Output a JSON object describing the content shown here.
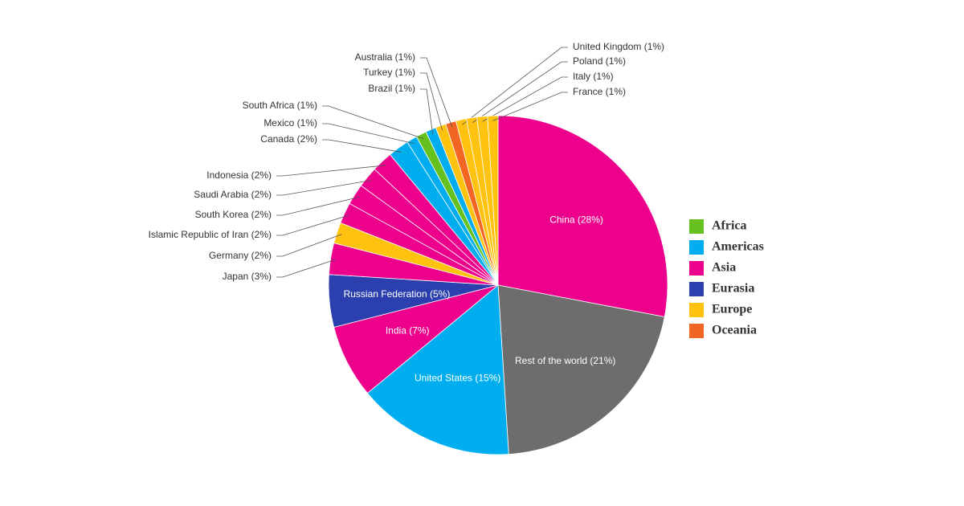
{
  "chart_data": {
    "type": "pie",
    "values": [
      28,
      21,
      15,
      7,
      5,
      3,
      2,
      2,
      2,
      2,
      2,
      2,
      1,
      1,
      1,
      1,
      1,
      1,
      1,
      1,
      1
    ],
    "value_labels": [
      "China (28%)",
      "Rest of the world (21%)",
      "United States (15%)",
      "India (7%)",
      "Russian Federation (5%)",
      "Japan (3%)",
      "Germany (2%)",
      "Islamic Republic of Iran (2%)",
      "South Korea (2%)",
      "Saudi Arabia (2%)",
      "Indonesia (2%)",
      "Canada (2%)",
      "Mexico (1%)",
      "South Africa (1%)",
      "Brazil (1%)",
      "Turkey (1%)",
      "Australia (1%)",
      "United Kingdom (1%)",
      "Poland (1%)",
      "Italy (1%)",
      "France (1%)"
    ],
    "colors": [
      "#ec008c",
      "#6d6d6d",
      "#00aeef",
      "#ec008c",
      "#2b3fae",
      "#ec008c",
      "#ffc20e",
      "#ec008c",
      "#ec008c",
      "#ec008c",
      "#ec008c",
      "#00aeef",
      "#00aeef",
      "#66c01e",
      "#00aeef",
      "#ffc20e",
      "#f26522",
      "#ffc20e",
      "#ffc20e",
      "#ffc20e",
      "#ffc20e"
    ],
    "legend": [
      {
        "name": "Africa",
        "color": "#66c01e"
      },
      {
        "name": "Americas",
        "color": "#00aeef"
      },
      {
        "name": "Asia",
        "color": "#ec008c"
      },
      {
        "name": "Eurasia",
        "color": "#2b3fae"
      },
      {
        "name": "Europe",
        "color": "#ffc20e"
      },
      {
        "name": "Oceania",
        "color": "#f26522"
      }
    ]
  }
}
